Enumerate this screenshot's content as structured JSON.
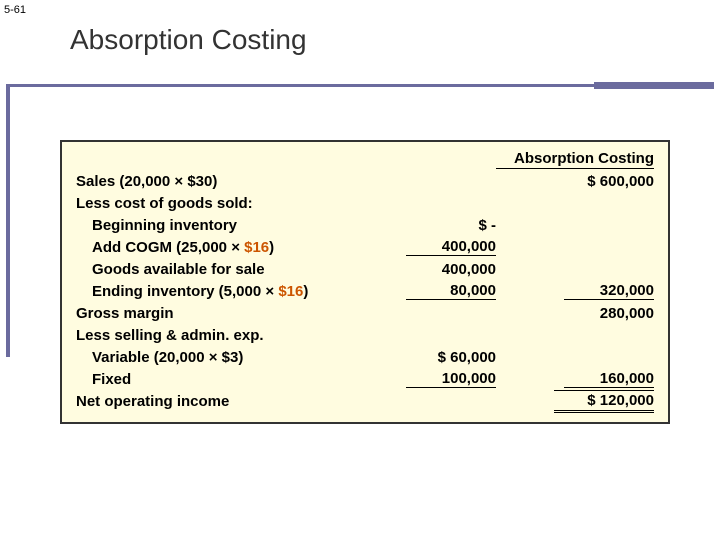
{
  "page_num": "5-61",
  "title": "Absorption Costing",
  "header": "Absorption Costing",
  "rows": {
    "sales_label": "Sales (20,000 × $30)",
    "sales_val": "$ 600,000",
    "less_cogs": "Less cost of goods sold:",
    "beg_inv": "Beginning inventory",
    "beg_inv_val": "$        -",
    "add_cogm_a": "Add COGM (25,000 × ",
    "add_cogm_hl": "$16",
    "add_cogm_b": ")",
    "add_cogm_val": "400,000",
    "gafs": "Goods available for sale",
    "gafs_val": "400,000",
    "end_inv_a": "Ending inventory (5,000 × ",
    "end_inv_hl": "$16",
    "end_inv_b": ")",
    "end_inv_val": "80,000",
    "cogs_total": "320,000",
    "gross_margin": "Gross margin",
    "gross_margin_val": "280,000",
    "less_sga": "Less selling & admin. exp.",
    "var_sga": "Variable (20,000 × $3)",
    "var_sga_val": "$  60,000",
    "fixed_sga": "Fixed",
    "fixed_sga_val": "100,000",
    "sga_total": "160,000",
    "noi": "Net operating income",
    "noi_val": "$ 120,000"
  }
}
